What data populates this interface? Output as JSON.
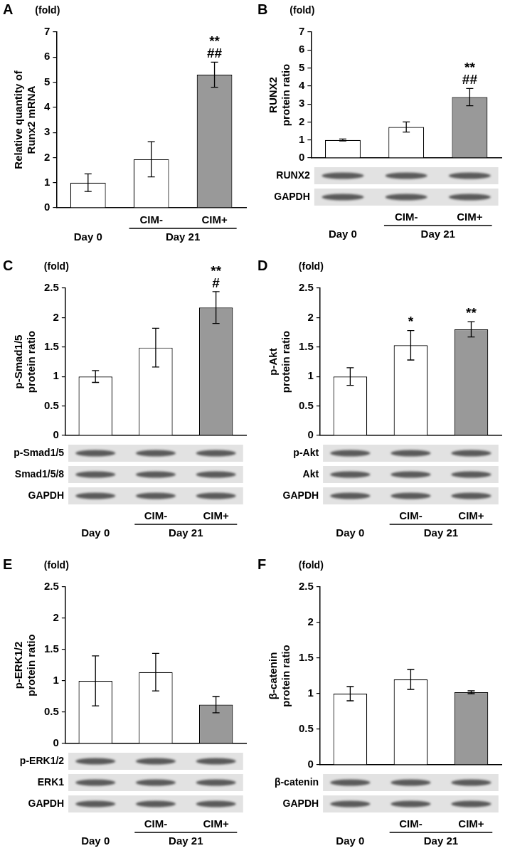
{
  "chart_data": [
    {
      "type": "bar",
      "panel": "A",
      "unit": "(fold)",
      "y_label": [
        "Relative quantity of",
        "Runx2 mRNA"
      ],
      "categories": [
        "Day 0",
        "CIM-",
        "CIM+"
      ],
      "category_groups": [
        {
          "label": "Day 21",
          "categories": [
            "CIM-",
            "CIM+"
          ]
        }
      ],
      "values": [
        1.0,
        1.93,
        5.3
      ],
      "errors": [
        0.35,
        0.7,
        0.5
      ],
      "colors": [
        "#ffffff",
        "#ffffff",
        "#999999"
      ],
      "ylim": [
        0,
        7
      ],
      "yticks": [
        0,
        1,
        2,
        3,
        4,
        5,
        6,
        7
      ],
      "grid": false,
      "annotations": [
        {
          "category": "CIM+",
          "text": [
            "**",
            "##"
          ]
        }
      ]
    },
    {
      "type": "bar",
      "panel": "B",
      "unit": "(fold)",
      "y_label": [
        "RUNX2",
        "protein ratio"
      ],
      "categories": [
        "Day 0",
        "CIM-",
        "CIM+"
      ],
      "category_groups": [
        {
          "label": "Day 21",
          "categories": [
            "CIM-",
            "CIM+"
          ]
        }
      ],
      "values": [
        1.0,
        1.72,
        3.38
      ],
      "errors": [
        0.05,
        0.28,
        0.48
      ],
      "colors": [
        "#ffffff",
        "#ffffff",
        "#999999"
      ],
      "ylim": [
        0,
        7
      ],
      "yticks": [
        0,
        1,
        2,
        3,
        4,
        5,
        6,
        7
      ],
      "grid": false,
      "annotations": [
        {
          "category": "CIM+",
          "text": [
            "**",
            "##"
          ]
        }
      ],
      "blots": [
        "RUNX2",
        "GAPDH"
      ]
    },
    {
      "type": "bar",
      "panel": "C",
      "unit": "(fold)",
      "y_label": [
        "p-Smad1/5",
        "protein ratio"
      ],
      "categories": [
        "Day 0",
        "CIM-",
        "CIM+"
      ],
      "category_groups": [
        {
          "label": "Day 21",
          "categories": [
            "CIM-",
            "CIM+"
          ]
        }
      ],
      "values": [
        1.0,
        1.49,
        2.17
      ],
      "errors": [
        0.1,
        0.33,
        0.27
      ],
      "colors": [
        "#ffffff",
        "#ffffff",
        "#999999"
      ],
      "ylim": [
        0,
        2.5
      ],
      "yticks": [
        0,
        0.5,
        1,
        1.5,
        2,
        2.5
      ],
      "grid": false,
      "annotations": [
        {
          "category": "CIM+",
          "text": [
            "**",
            "#"
          ]
        }
      ],
      "blots": [
        "p-Smad1/5",
        "Smad1/5/8",
        "GAPDH"
      ]
    },
    {
      "type": "bar",
      "panel": "D",
      "unit": "(fold)",
      "y_label": [
        "p-Akt",
        "protein ratio"
      ],
      "categories": [
        "Day 0",
        "CIM-",
        "CIM+"
      ],
      "category_groups": [
        {
          "label": "Day 21",
          "categories": [
            "CIM-",
            "CIM+"
          ]
        }
      ],
      "values": [
        1.0,
        1.53,
        1.8
      ],
      "errors": [
        0.15,
        0.25,
        0.13
      ],
      "colors": [
        "#ffffff",
        "#ffffff",
        "#999999"
      ],
      "ylim": [
        0,
        2.5
      ],
      "yticks": [
        0,
        0.5,
        1,
        1.5,
        2,
        2.5
      ],
      "grid": false,
      "annotations": [
        {
          "category": "CIM-",
          "text": [
            "*"
          ]
        },
        {
          "category": "CIM+",
          "text": [
            "**"
          ]
        }
      ],
      "blots": [
        "p-Akt",
        "Akt",
        "GAPDH"
      ]
    },
    {
      "type": "bar",
      "panel": "E",
      "unit": "(fold)",
      "y_label": [
        "p-ERK1/2",
        "protein ratio"
      ],
      "categories": [
        "Day 0",
        "CIM-",
        "CIM+"
      ],
      "category_groups": [
        {
          "label": "Day 21",
          "categories": [
            "CIM-",
            "CIM+"
          ]
        }
      ],
      "values": [
        1.0,
        1.14,
        0.62
      ],
      "errors": [
        0.4,
        0.3,
        0.13
      ],
      "colors": [
        "#ffffff",
        "#ffffff",
        "#999999"
      ],
      "ylim": [
        0,
        2.5
      ],
      "yticks": [
        0,
        0.5,
        1,
        1.5,
        2,
        2.5
      ],
      "grid": false,
      "blots": [
        "p-ERK1/2",
        "ERK1",
        "GAPDH"
      ]
    },
    {
      "type": "bar",
      "panel": "F",
      "unit": "(fold)",
      "y_label": [
        "β-catenin",
        "protein ratio"
      ],
      "categories": [
        "Day 0",
        "CIM-",
        "CIM+"
      ],
      "category_groups": [
        {
          "label": "Day 21",
          "categories": [
            "CIM-",
            "CIM+"
          ]
        }
      ],
      "values": [
        1.0,
        1.2,
        1.02
      ],
      "errors": [
        0.1,
        0.14,
        0.02
      ],
      "colors": [
        "#ffffff",
        "#ffffff",
        "#999999"
      ],
      "ylim": [
        0,
        2.5
      ],
      "yticks": [
        0,
        0.5,
        1,
        1.5,
        2,
        2.5
      ],
      "grid": false,
      "blots": [
        "β-catenin",
        "GAPDH"
      ]
    }
  ]
}
